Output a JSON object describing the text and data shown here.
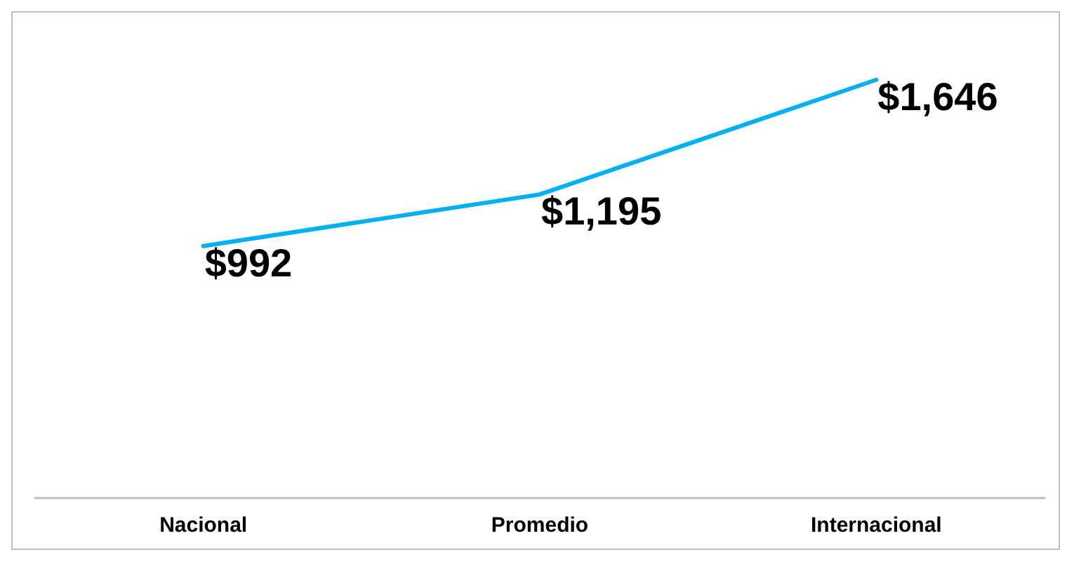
{
  "chart_data": {
    "type": "line",
    "categories": [
      "Nacional",
      "Promedio",
      "Internacional"
    ],
    "series": [
      {
        "color": "#00b0f0",
        "values": [
          992,
          1195,
          1646
        ],
        "value_labels": [
          "$992",
          "$1,195",
          "$1,646"
        ]
      }
    ],
    "tick_labels": "x",
    "grid": false,
    "marker": "none",
    "line_style": "solid"
  }
}
